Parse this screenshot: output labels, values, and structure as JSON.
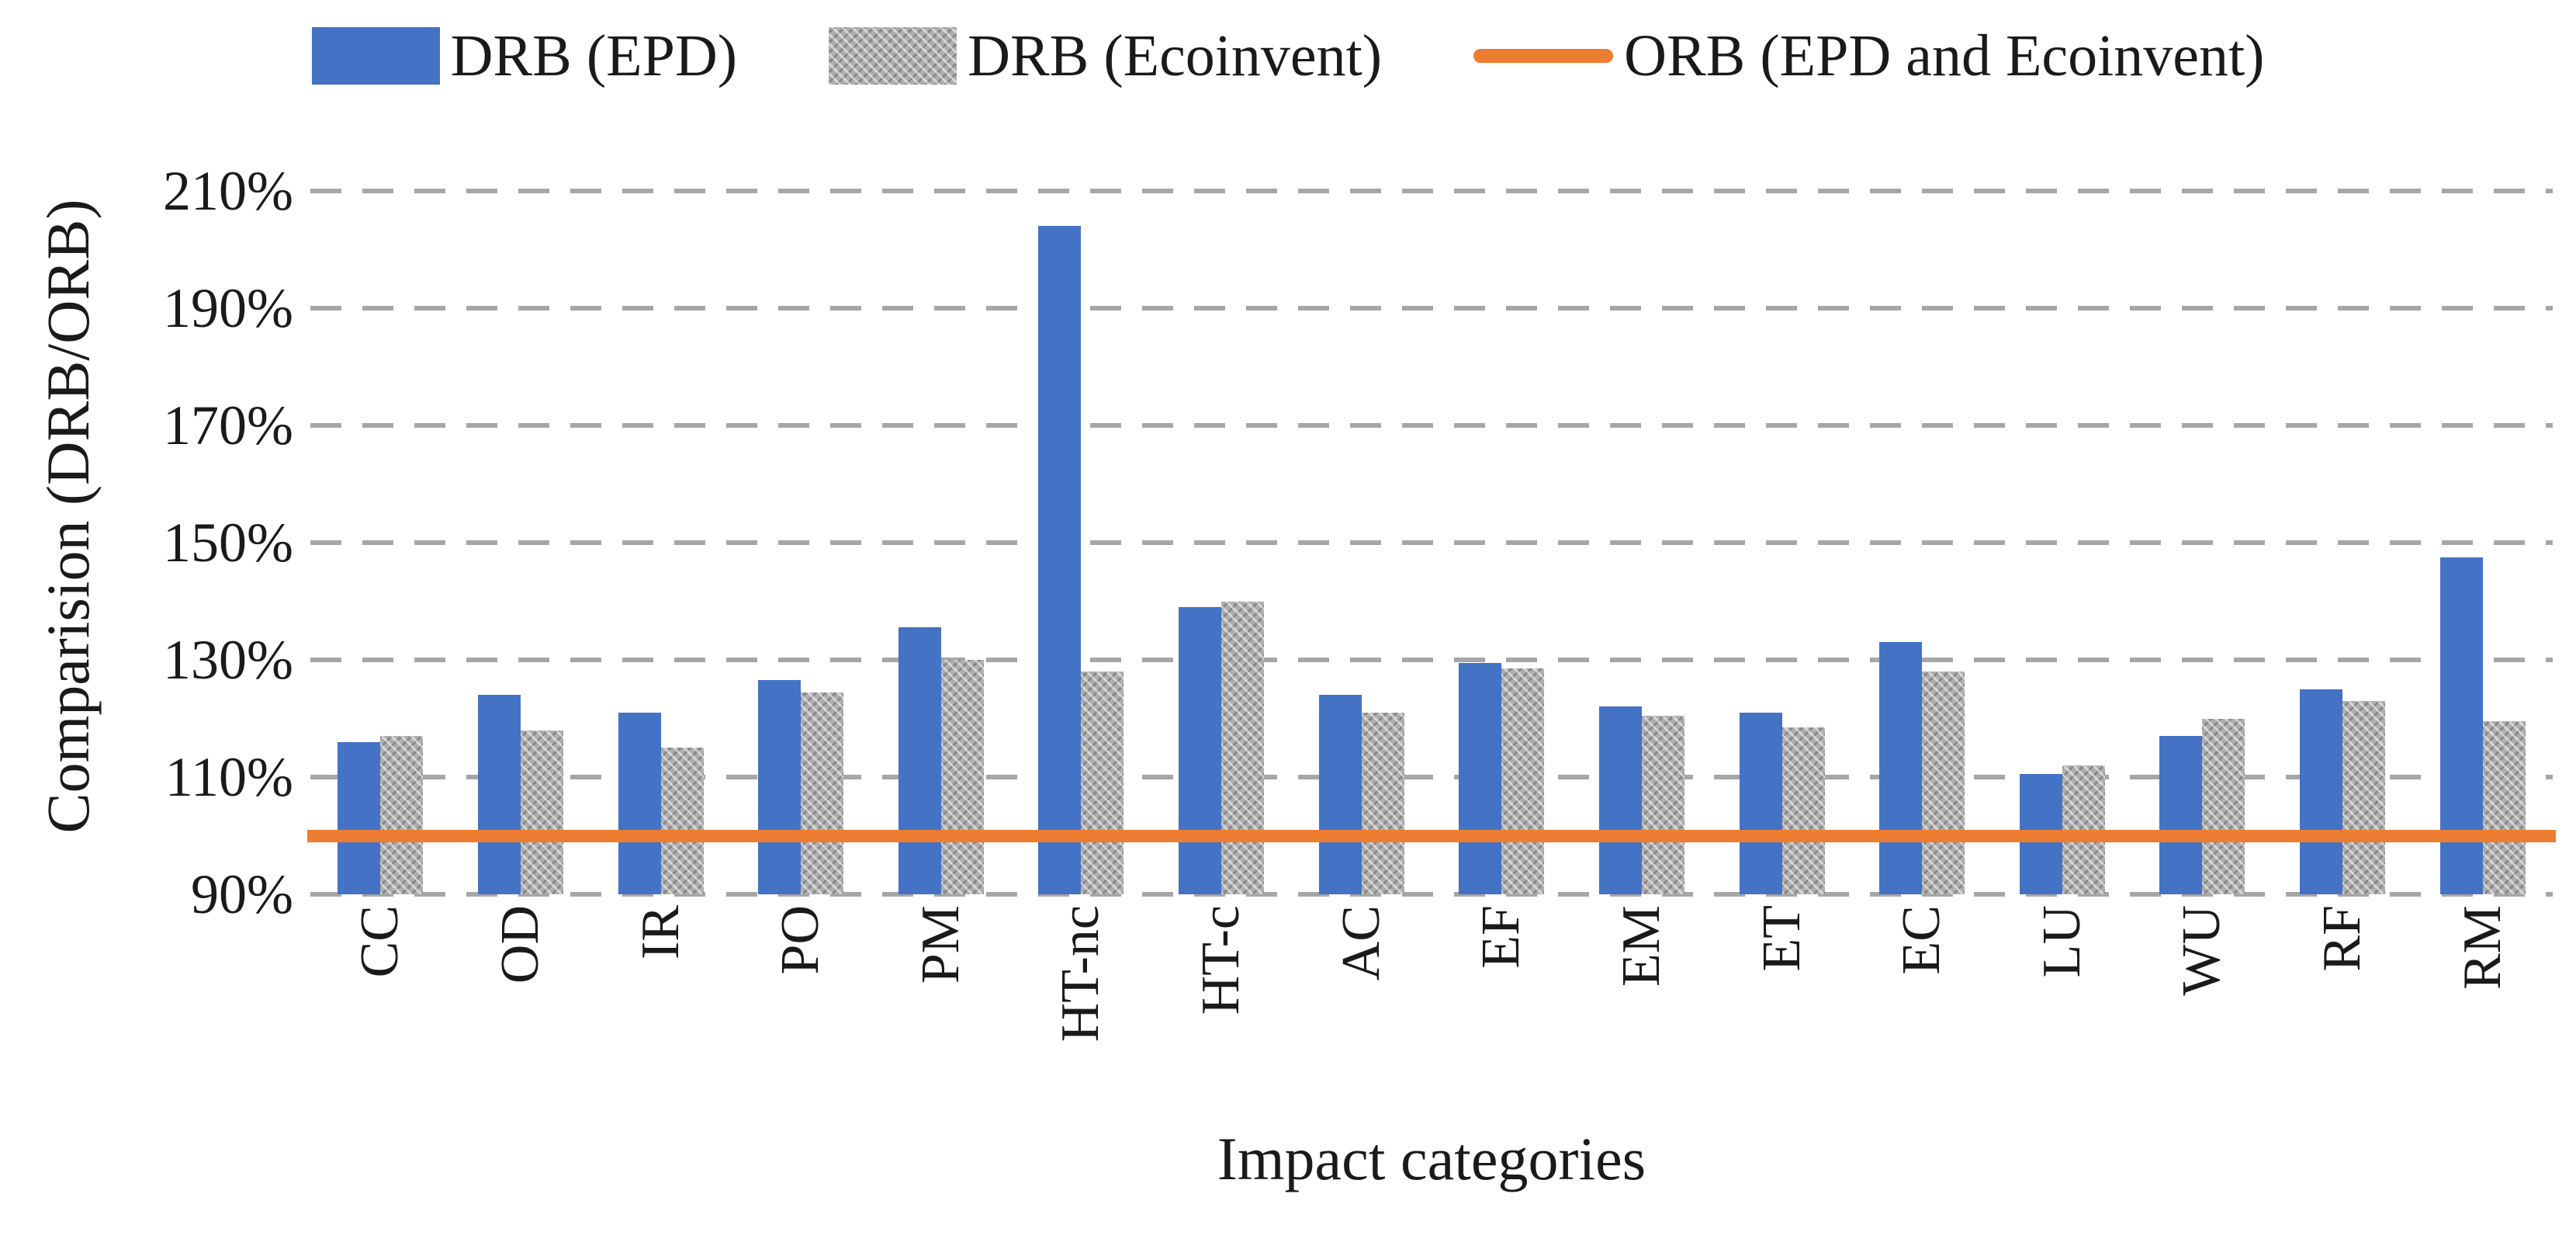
{
  "legend": [
    {
      "label": "DRB (EPD)",
      "swatch": "bar-solid",
      "color": "#4472C4"
    },
    {
      "label": "DRB (Ecoinvent)",
      "swatch": "bar-pattern",
      "color": "#ABABAB"
    },
    {
      "label": "ORB (EPD and Ecoinvent)",
      "swatch": "line",
      "color": "#ED7D31"
    }
  ],
  "colors": {
    "bar_epd": "#4472C4",
    "bar_ecoinvent": "#ABABAB",
    "orb_line": "#ED7D31",
    "gridline": "#A6A6A6"
  },
  "chart_data": {
    "type": "bar",
    "title": "",
    "xlabel": "Impact categories",
    "ylabel": "Comparision (DRB/ORB)",
    "categories": [
      "CC",
      "OD",
      "IR",
      "PO",
      "PM",
      "HT-nc",
      "HT-c",
      "AC",
      "EF",
      "EM",
      "ET",
      "EC",
      "LU",
      "WU",
      "RF",
      "RM"
    ],
    "series": [
      {
        "name": "DRB (EPD)",
        "values": [
          116,
          124,
          121,
          126.5,
          135.5,
          204,
          139,
          124,
          129.5,
          122,
          121,
          133,
          110.5,
          117,
          125,
          147.5
        ]
      },
      {
        "name": "DRB (Ecoinvent)",
        "values": [
          117,
          118,
          115,
          124.5,
          130,
          128,
          140,
          121,
          128.5,
          120.5,
          118.5,
          128,
          112,
          120,
          123,
          119.5
        ]
      }
    ],
    "reference_line": {
      "name": "ORB (EPD and Ecoinvent)",
      "value": 100
    },
    "ylim": [
      90,
      210
    ],
    "ytick_values": [
      90,
      110,
      130,
      150,
      170,
      190,
      210
    ],
    "ytick_suffix": "%",
    "grid": "dashed horizontal",
    "legend_position": "top"
  }
}
